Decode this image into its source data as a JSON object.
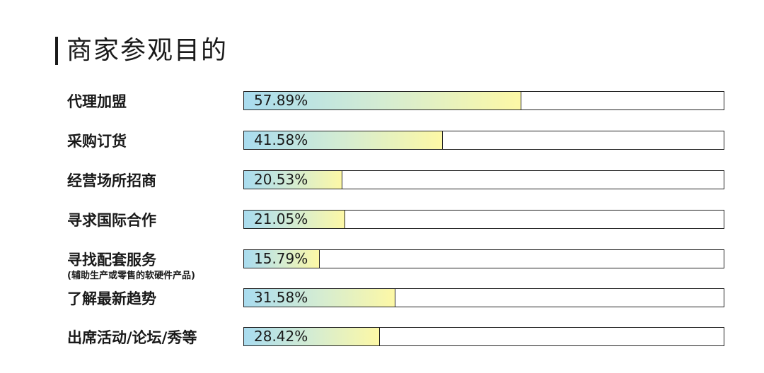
{
  "title": "商家参观目的",
  "chart_data": {
    "type": "bar",
    "title": "商家参观目的",
    "categories": [
      {
        "label": "代理加盟",
        "sublabel": ""
      },
      {
        "label": "采购订货",
        "sublabel": ""
      },
      {
        "label": "经营场所招商",
        "sublabel": ""
      },
      {
        "label": "寻求国际合作",
        "sublabel": ""
      },
      {
        "label": "寻找配套服务",
        "sublabel": "(辅助生产或零售的软硬件产品)"
      },
      {
        "label": "了解最新趋势",
        "sublabel": ""
      },
      {
        "label": "出席活动/论坛/秀等",
        "sublabel": ""
      }
    ],
    "values": [
      57.89,
      41.58,
      20.53,
      21.05,
      15.79,
      31.58,
      28.42
    ],
    "value_labels": [
      "57.89%",
      "41.58%",
      "20.53%",
      "21.05%",
      "15.79%",
      "31.58%",
      "28.42%"
    ],
    "xlim": [
      0,
      100
    ],
    "orientation": "horizontal",
    "grid": false,
    "colors": {
      "gradient_start": "#a9dcef",
      "gradient_mid": "#d4ecd2",
      "gradient_end": "#fdf8a6",
      "border": "#222222"
    }
  }
}
